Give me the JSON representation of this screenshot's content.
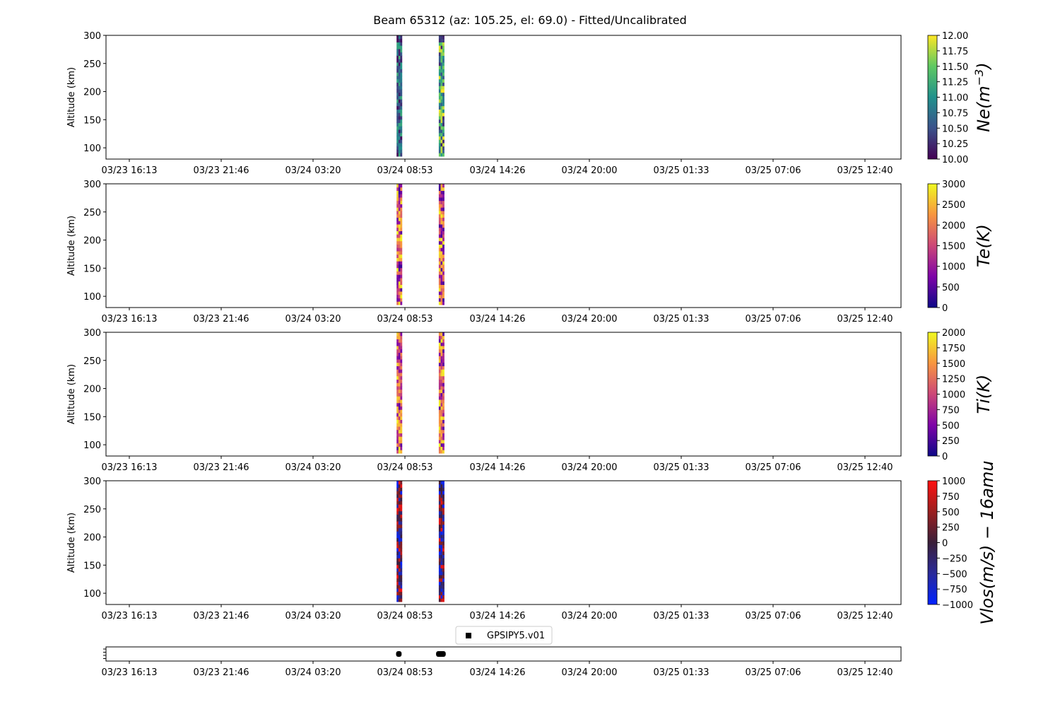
{
  "figure": {
    "title": "Beam 65312 (az: 105.25, el: 69.0) - Fitted/Uncalibrated"
  },
  "colors": {
    "axis": "#000000",
    "background": "#ffffff"
  },
  "chart_data": [
    {
      "type": "heatmap",
      "panel": "ne",
      "ylabel": "Altitude (km)",
      "xlabel": "",
      "xticks": [
        "03/23 16:13",
        "03/23 21:46",
        "03/24 03:20",
        "03/24 08:53",
        "03/24 14:26",
        "03/24 20:00",
        "03/25 01:33",
        "03/25 07:06",
        "03/25 12:40"
      ],
      "yticks": [
        100,
        150,
        200,
        250,
        300
      ],
      "ylim": [
        80,
        300
      ],
      "colorbar": {
        "label_parts": [
          "Ne(m",
          "−3",
          ")"
        ],
        "ticks": [
          "10.00",
          "10.25",
          "10.50",
          "10.75",
          "11.00",
          "11.25",
          "11.50",
          "11.75",
          "12.00"
        ],
        "range": [
          10,
          12
        ],
        "colormap": "viridis"
      },
      "data_columns": [
        {
          "time": "03/24 08:32",
          "altitude_range": [
            85,
            300
          ],
          "dominant": [
            10.0,
            11.3
          ]
        },
        {
          "time": "03/24 11:05",
          "altitude_range": [
            85,
            300
          ],
          "dominant": [
            10.2,
            12.0
          ]
        }
      ]
    },
    {
      "type": "heatmap",
      "panel": "te",
      "ylabel": "Altitude (km)",
      "xlabel": "",
      "xticks": [
        "03/23 16:13",
        "03/23 21:46",
        "03/24 03:20",
        "03/24 08:53",
        "03/24 14:26",
        "03/24 20:00",
        "03/25 01:33",
        "03/25 07:06",
        "03/25 12:40"
      ],
      "yticks": [
        100,
        150,
        200,
        250,
        300
      ],
      "ylim": [
        80,
        300
      ],
      "colorbar": {
        "label_parts": [
          "Te(K)"
        ],
        "ticks": [
          "0",
          "500",
          "1000",
          "1500",
          "2000",
          "2500",
          "3000"
        ],
        "range": [
          0,
          3000
        ],
        "colormap": "plasma"
      },
      "data_columns": [
        {
          "time": "03/24 08:32",
          "altitude_range": [
            85,
            300
          ],
          "dominant": [
            300,
            3000
          ]
        },
        {
          "time": "03/24 11:05",
          "altitude_range": [
            85,
            300
          ],
          "dominant": [
            300,
            3000
          ]
        }
      ]
    },
    {
      "type": "heatmap",
      "panel": "ti",
      "ylabel": "Altitude (km)",
      "xlabel": "",
      "xticks": [
        "03/23 16:13",
        "03/23 21:46",
        "03/24 03:20",
        "03/24 08:53",
        "03/24 14:26",
        "03/24 20:00",
        "03/25 01:33",
        "03/25 07:06",
        "03/25 12:40"
      ],
      "yticks": [
        100,
        150,
        200,
        250,
        300
      ],
      "ylim": [
        80,
        300
      ],
      "colorbar": {
        "label_parts": [
          "Ti(K)"
        ],
        "ticks": [
          "0",
          "250",
          "500",
          "750",
          "1000",
          "1250",
          "1500",
          "1750",
          "2000"
        ],
        "range": [
          0,
          2000
        ],
        "colormap": "plasma"
      },
      "data_columns": [
        {
          "time": "03/24 08:32",
          "altitude_range": [
            85,
            300
          ],
          "dominant": [
            300,
            2000
          ]
        },
        {
          "time": "03/24 11:05",
          "altitude_range": [
            85,
            300
          ],
          "dominant": [
            300,
            2000
          ]
        }
      ]
    },
    {
      "type": "heatmap",
      "panel": "vlos",
      "ylabel": "Altitude (km)",
      "xlabel": "",
      "xticks": [
        "03/23 16:13",
        "03/23 21:46",
        "03/24 03:20",
        "03/24 08:53",
        "03/24 14:26",
        "03/24 20:00",
        "03/25 01:33",
        "03/25 07:06",
        "03/25 12:40"
      ],
      "yticks": [
        100,
        150,
        200,
        250,
        300
      ],
      "ylim": [
        80,
        300
      ],
      "colorbar": {
        "label_parts": [
          "Vlos(m/s) − 16amu"
        ],
        "ticks": [
          "−1000",
          "−750",
          "−500",
          "−250",
          "0",
          "250",
          "500",
          "750",
          "1000"
        ],
        "range": [
          -1000,
          1000
        ],
        "colormap": "bwr-dark"
      },
      "data_columns": [
        {
          "time": "03/24 08:32",
          "altitude_range": [
            85,
            300
          ],
          "dominant": [
            -1000,
            1000
          ]
        },
        {
          "time": "03/24 11:05",
          "altitude_range": [
            85,
            300
          ],
          "dominant": [
            -1000,
            1000
          ]
        }
      ]
    },
    {
      "type": "scatter",
      "panel": "timeline",
      "legend": "GPSIPY5.v01",
      "legend_position": "top-center",
      "xticks": [
        "03/23 16:13",
        "03/23 21:46",
        "03/24 03:20",
        "03/24 08:53",
        "03/24 14:26",
        "03/24 20:00",
        "03/25 01:33",
        "03/25 07:06",
        "03/25 12:40"
      ],
      "segments": [
        {
          "start": "03/24 08:20",
          "end": "03/24 08:40"
        },
        {
          "start": "03/24 10:45",
          "end": "03/24 11:20"
        }
      ]
    }
  ]
}
